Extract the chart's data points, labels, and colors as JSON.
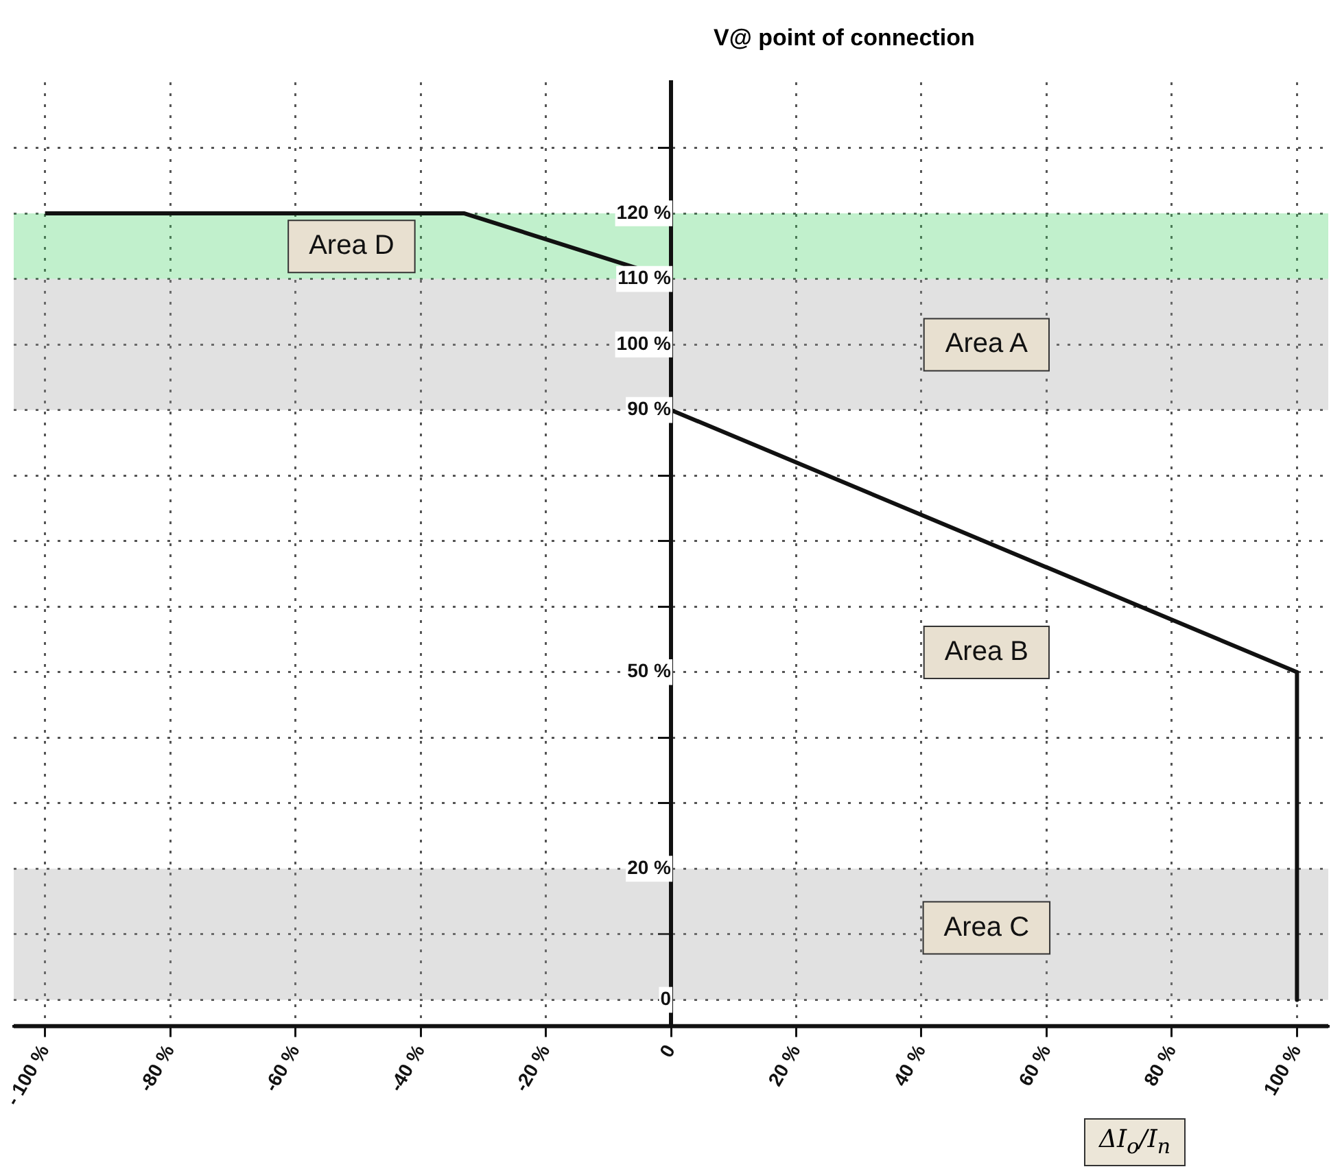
{
  "chart_data": {
    "type": "line",
    "ylabel": "V@ point of connection",
    "xlabel": "ΔI$_{o}$/I$_{n}$",
    "xlim": [
      -105,
      105
    ],
    "xticks": [
      {
        "value": -100,
        "label": "- 100 %"
      },
      {
        "value": -80,
        "label": "-80 %"
      },
      {
        "value": -60,
        "label": "-60 %"
      },
      {
        "value": -40,
        "label": "-40 %"
      },
      {
        "value": -20,
        "label": "-20 %"
      },
      0,
      {
        "value": 20,
        "label": "20 %"
      },
      {
        "value": 40,
        "label": "40 %"
      },
      {
        "value": 60,
        "label": "60 %"
      },
      {
        "value": 80,
        "label": "80 %"
      },
      {
        "value": 100,
        "label": "100 %"
      }
    ],
    "ylim": [
      -4,
      140
    ],
    "yticks": [
      0,
      {
        "value": 10,
        "label": null
      },
      {
        "value": 20,
        "label": "20 %"
      },
      {
        "value": 30,
        "label": null
      },
      {
        "value": 40,
        "label": null
      },
      {
        "value": 50,
        "label": "50 %"
      },
      {
        "value": 60,
        "label": null
      },
      {
        "value": 70,
        "label": null
      },
      {
        "value": 80,
        "label": null
      },
      {
        "value": 90,
        "label": "90 %"
      },
      {
        "value": 100,
        "label": "100 %"
      },
      {
        "value": 110,
        "label": "110 %"
      },
      {
        "value": 120,
        "label": "120 %"
      },
      {
        "value": 130,
        "label": null
      }
    ],
    "grid": true,
    "line_style": "solid",
    "marker": "none",
    "series": [
      {
        "color": "#111111",
        "x": [
          -100,
          -33,
          0
        ],
        "values": [
          120,
          120,
          110
        ]
      },
      {
        "color": "#111111",
        "x": [
          0,
          100,
          100
        ],
        "values": [
          90,
          50,
          0
        ]
      }
    ],
    "bands": [
      {
        "axis": "y",
        "from": 90,
        "to": 110,
        "color": "#9a9a9a"
      },
      {
        "axis": "y",
        "from": 110,
        "to": 120,
        "color": "#33cc55"
      },
      {
        "axis": "y",
        "from": 0,
        "to": 20,
        "color": "#9a9a9a"
      }
    ],
    "annotations": [
      "Area A",
      "Area B",
      "Area C",
      "Area D"
    ]
  }
}
